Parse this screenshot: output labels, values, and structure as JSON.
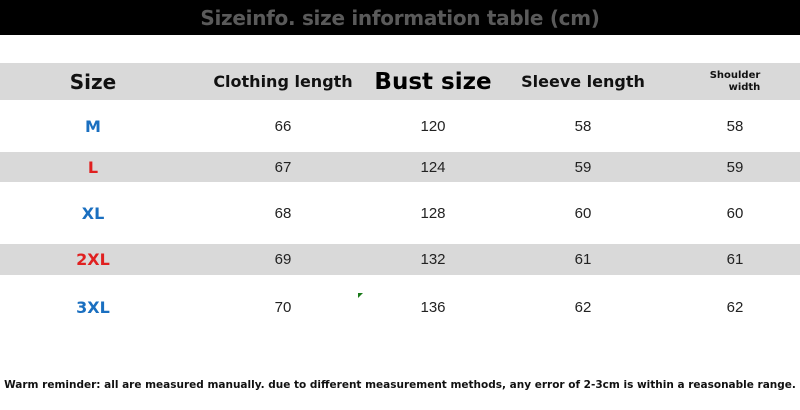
{
  "title": "Sizeinfo. size information table (cm)",
  "headers": {
    "size": "Size",
    "clothing": "Clothing length",
    "bust": "Bust size",
    "sleeve": "Sleeve length",
    "shoulder_1": "Shoulder",
    "shoulder_2": "width"
  },
  "rows": [
    {
      "size": "M",
      "color": "#1a6fc0",
      "clothing": "66",
      "bust": "120",
      "sleeve": "58",
      "shoulder": "58"
    },
    {
      "size": "L",
      "color": "#e02020",
      "clothing": "67",
      "bust": "124",
      "sleeve": "59",
      "shoulder": "59"
    },
    {
      "size": "XL",
      "color": "#1a6fc0",
      "clothing": "68",
      "bust": "128",
      "sleeve": "60",
      "shoulder": "60"
    },
    {
      "size": "2XL",
      "color": "#e02020",
      "clothing": "69",
      "bust": "132",
      "sleeve": "61",
      "shoulder": "61"
    },
    {
      "size": "3XL",
      "color": "#1a6fc0",
      "clothing": "70",
      "bust": "136",
      "sleeve": "62",
      "shoulder": "62"
    }
  ],
  "note": "Warm reminder: all are measured manually. due to different measurement methods, any error of 2-3cm is within a reasonable range."
}
